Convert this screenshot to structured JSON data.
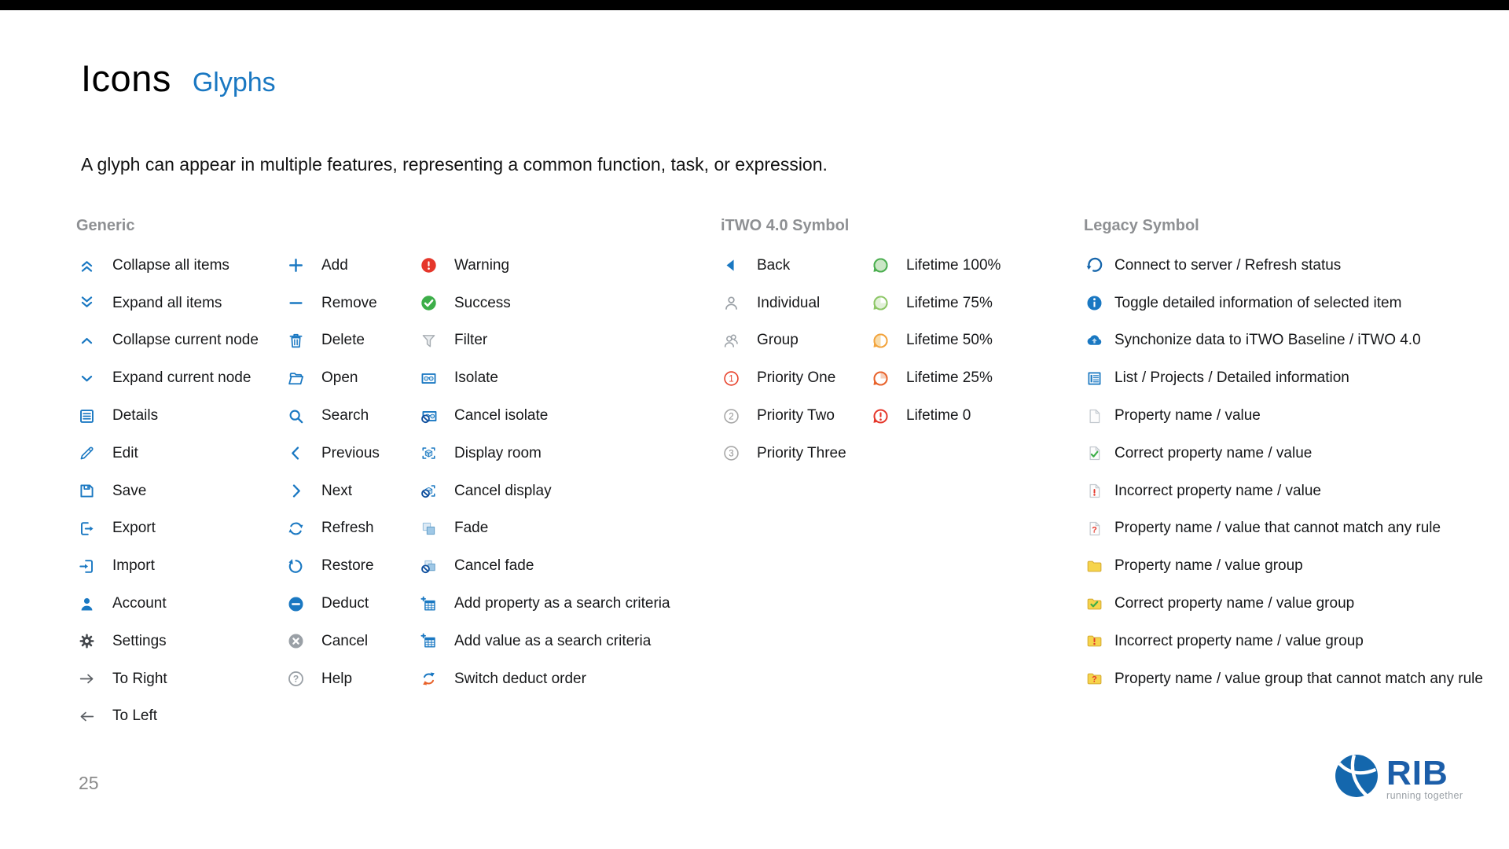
{
  "page": {
    "title": "Icons",
    "title_accent": "Glyphs",
    "description": "A glyph can appear in multiple features, representing a common function, task, or expression.",
    "page_number": "25",
    "accent_color": "#1a78c2",
    "logo": {
      "text": "RIB",
      "tagline": "running together"
    }
  },
  "sections": [
    {
      "id": "generic",
      "title": "Generic",
      "columns": [
        [
          {
            "icon": "collapse-all",
            "label": "Collapse all items"
          },
          {
            "icon": "expand-all",
            "label": "Expand all items"
          },
          {
            "icon": "collapse-node",
            "label": "Collapse current node"
          },
          {
            "icon": "expand-node",
            "label": "Expand current node"
          },
          {
            "icon": "details",
            "label": "Details"
          },
          {
            "icon": "edit",
            "label": "Edit"
          },
          {
            "icon": "save",
            "label": "Save"
          },
          {
            "icon": "export",
            "label": "Export"
          },
          {
            "icon": "import",
            "label": "Import"
          },
          {
            "icon": "account",
            "label": "Account"
          },
          {
            "icon": "settings",
            "label": "Settings"
          },
          {
            "icon": "to-right",
            "label": "To Right"
          },
          {
            "icon": "to-left",
            "label": "To Left"
          }
        ],
        [
          {
            "icon": "add",
            "label": "Add"
          },
          {
            "icon": "remove",
            "label": "Remove"
          },
          {
            "icon": "delete",
            "label": "Delete"
          },
          {
            "icon": "open",
            "label": "Open"
          },
          {
            "icon": "search",
            "label": "Search"
          },
          {
            "icon": "previous",
            "label": "Previous"
          },
          {
            "icon": "next",
            "label": "Next"
          },
          {
            "icon": "refresh",
            "label": "Refresh"
          },
          {
            "icon": "restore",
            "label": "Restore"
          },
          {
            "icon": "deduct",
            "label": "Deduct"
          },
          {
            "icon": "cancel",
            "label": "Cancel"
          },
          {
            "icon": "help",
            "label": "Help"
          }
        ],
        [
          {
            "icon": "warning",
            "label": "Warning"
          },
          {
            "icon": "success",
            "label": "Success"
          },
          {
            "icon": "filter",
            "label": "Filter"
          },
          {
            "icon": "isolate",
            "label": "Isolate"
          },
          {
            "icon": "cancel-isolate",
            "label": "Cancel isolate"
          },
          {
            "icon": "display-room",
            "label": "Display room"
          },
          {
            "icon": "cancel-display",
            "label": "Cancel display"
          },
          {
            "icon": "fade",
            "label": "Fade"
          },
          {
            "icon": "cancel-fade",
            "label": "Cancel fade"
          },
          {
            "icon": "add-property",
            "label": "Add property as a search criteria"
          },
          {
            "icon": "add-value",
            "label": "Add value as a search criteria"
          },
          {
            "icon": "switch-deduct",
            "label": "Switch deduct order"
          }
        ]
      ]
    },
    {
      "id": "itwo",
      "title": "iTWO 4.0 Symbol",
      "columns": [
        [
          {
            "icon": "back",
            "label": "Back"
          },
          {
            "icon": "individual",
            "label": "Individual"
          },
          {
            "icon": "group",
            "label": "Group"
          },
          {
            "icon": "priority-1",
            "label": "Priority One"
          },
          {
            "icon": "priority-2",
            "label": "Priority Two"
          },
          {
            "icon": "priority-3",
            "label": "Priority Three"
          }
        ],
        [
          {
            "icon": "lifetime-100",
            "label": "Lifetime 100%"
          },
          {
            "icon": "lifetime-75",
            "label": "Lifetime 75%"
          },
          {
            "icon": "lifetime-50",
            "label": "Lifetime 50%"
          },
          {
            "icon": "lifetime-25",
            "label": "Lifetime 25%"
          },
          {
            "icon": "lifetime-0",
            "label": "Lifetime 0"
          }
        ]
      ]
    },
    {
      "id": "legacy",
      "title": "Legacy Symbol",
      "columns": [
        [
          {
            "icon": "connect",
            "label": "Connect to server / Refresh status"
          },
          {
            "icon": "info",
            "label": "Toggle detailed information of selected item"
          },
          {
            "icon": "sync-cloud",
            "label": "Synchonize data to iTWO Baseline / iTWO 4.0"
          },
          {
            "icon": "list-detail",
            "label": "List / Projects / Detailed information"
          },
          {
            "icon": "doc-plain",
            "label": "Property name / value"
          },
          {
            "icon": "doc-check",
            "label": "Correct property name / value"
          },
          {
            "icon": "doc-error",
            "label": "Incorrect property name / value"
          },
          {
            "icon": "doc-question",
            "label": "Property name / value that cannot match any rule"
          },
          {
            "icon": "folder-plain",
            "label": "Property name / value group"
          },
          {
            "icon": "folder-check",
            "label": "Correct property name / value group"
          },
          {
            "icon": "folder-error",
            "label": "Incorrect property name / value group"
          },
          {
            "icon": "folder-question",
            "label": "Property name / value group that cannot match any rule"
          }
        ]
      ]
    }
  ]
}
